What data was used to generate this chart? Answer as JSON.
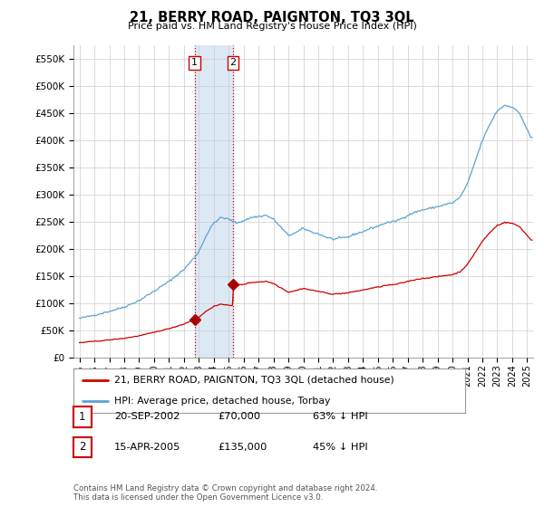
{
  "title": "21, BERRY ROAD, PAIGNTON, TQ3 3QL",
  "subtitle": "Price paid vs. HM Land Registry's House Price Index (HPI)",
  "hpi_color": "#5ba3d0",
  "price_color": "#cc0000",
  "highlight_color": "#dce9f5",
  "sale_marker_color": "#aa0000",
  "ylim": [
    0,
    575000
  ],
  "xlim": [
    1994.6,
    2025.4
  ],
  "yticks": [
    0,
    50000,
    100000,
    150000,
    200000,
    250000,
    300000,
    350000,
    400000,
    450000,
    500000,
    550000
  ],
  "ytick_labels": [
    "£0",
    "£50K",
    "£100K",
    "£150K",
    "£200K",
    "£250K",
    "£300K",
    "£350K",
    "£400K",
    "£450K",
    "£500K",
    "£550K"
  ],
  "xtick_years": [
    1995,
    1996,
    1997,
    1998,
    1999,
    2000,
    2001,
    2002,
    2003,
    2004,
    2005,
    2006,
    2007,
    2008,
    2009,
    2010,
    2011,
    2012,
    2013,
    2014,
    2015,
    2016,
    2017,
    2018,
    2019,
    2020,
    2021,
    2022,
    2023,
    2024,
    2025
  ],
  "highlight_xmin": 2002.72,
  "highlight_xmax": 2005.29,
  "sale1_x": 2002.72,
  "sale1_y": 70000,
  "sale2_x": 2005.29,
  "sale2_y": 135000,
  "legend_entries": [
    {
      "label": "21, BERRY ROAD, PAIGNTON, TQ3 3QL (detached house)",
      "color": "#cc0000"
    },
    {
      "label": "HPI: Average price, detached house, Torbay",
      "color": "#5ba3d0"
    }
  ],
  "table_rows": [
    {
      "num": "1",
      "date": "20-SEP-2002",
      "price": "£70,000",
      "rel": "63% ↓ HPI"
    },
    {
      "num": "2",
      "date": "15-APR-2005",
      "price": "£135,000",
      "rel": "45% ↓ HPI"
    }
  ],
  "footer": "Contains HM Land Registry data © Crown copyright and database right 2024.\nThis data is licensed under the Open Government Licence v3.0.",
  "background_color": "#ffffff",
  "grid_color": "#cccccc"
}
